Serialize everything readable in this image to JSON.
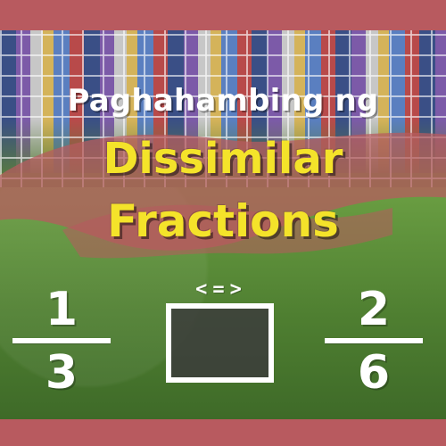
{
  "title": {
    "line1": "Paghahambing ng",
    "line2": "Dissimilar",
    "line3": "Fractions"
  },
  "hint": "<=>",
  "fractions": {
    "left": {
      "numerator": "1",
      "denominator": "3"
    },
    "right": {
      "numerator": "2",
      "denominator": "6"
    }
  },
  "colors": {
    "band": "#b85a5f",
    "title_accent": "#f4e32a"
  }
}
